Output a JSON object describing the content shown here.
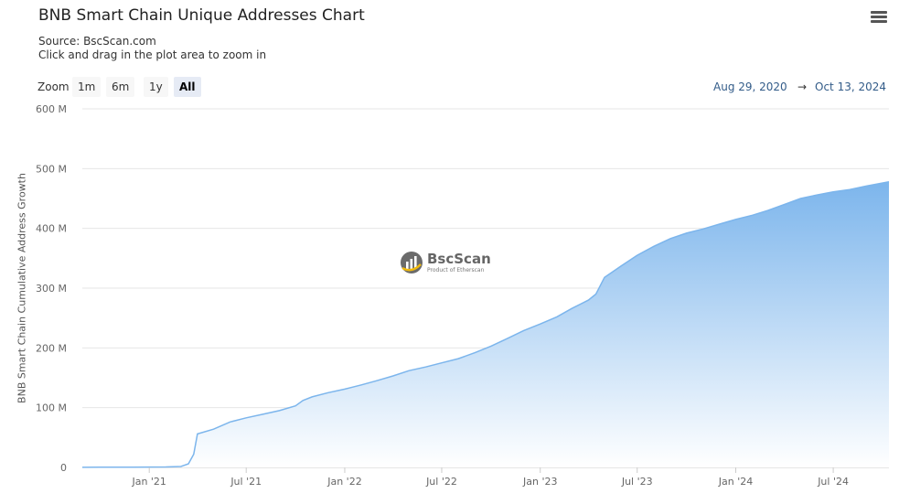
{
  "header": {
    "title": "BNB Smart Chain Unique Addresses Chart",
    "source": "Source: BscScan.com",
    "hint": "Click and drag in the plot area to zoom in"
  },
  "zoom": {
    "label": "Zoom",
    "options": [
      "1m",
      "6m",
      "1y",
      "All"
    ],
    "active": "All"
  },
  "range": {
    "from": "Aug 29, 2020",
    "arrow": "→",
    "to": "Oct 13, 2024"
  },
  "watermark": {
    "brand": "BscScan",
    "tagline": "Product of Etherscan"
  },
  "icons": {
    "menu": "hamburger-menu-icon",
    "logo": "bscscan-logo-icon"
  },
  "colors": {
    "series_line": "#7cb5ec",
    "area_top": "#7cb5ec",
    "area_bottom": "#ffffff",
    "grid": "#e6e6e6",
    "range_text": "#335c89"
  },
  "chart_data": {
    "type": "area",
    "ylabel": "BNB Smart Chain Cumulative Address Growth",
    "ylim": [
      0,
      600
    ],
    "yticks": [
      {
        "value": 0,
        "label": "0"
      },
      {
        "value": 100,
        "label": "100 M"
      },
      {
        "value": 200,
        "label": "200 M"
      },
      {
        "value": 300,
        "label": "300 M"
      },
      {
        "value": 400,
        "label": "400 M"
      },
      {
        "value": 500,
        "label": "500 M"
      },
      {
        "value": 600,
        "label": "600 M"
      }
    ],
    "xlim": [
      "2020-08-29",
      "2024-10-13"
    ],
    "xticks": [
      {
        "date": "2021-01-01",
        "label": "Jan '21"
      },
      {
        "date": "2021-07-01",
        "label": "Jul '21"
      },
      {
        "date": "2022-01-01",
        "label": "Jan '22"
      },
      {
        "date": "2022-07-01",
        "label": "Jul '22"
      },
      {
        "date": "2023-01-01",
        "label": "Jan '23"
      },
      {
        "date": "2023-07-01",
        "label": "Jul '23"
      },
      {
        "date": "2024-01-01",
        "label": "Jan '24"
      },
      {
        "date": "2024-07-01",
        "label": "Jul '24"
      }
    ],
    "grid": true,
    "legend": "none",
    "series": [
      {
        "points": [
          [
            "2020-08-29",
            0.2
          ],
          [
            "2020-10-01",
            0.3
          ],
          [
            "2020-12-01",
            0.5
          ],
          [
            "2021-02-01",
            0.8
          ],
          [
            "2021-03-01",
            1.5
          ],
          [
            "2021-03-15",
            6
          ],
          [
            "2021-03-25",
            22
          ],
          [
            "2021-04-01",
            56
          ],
          [
            "2021-05-01",
            64
          ],
          [
            "2021-06-01",
            76
          ],
          [
            "2021-07-01",
            83
          ],
          [
            "2021-08-01",
            89
          ],
          [
            "2021-09-01",
            95
          ],
          [
            "2021-10-01",
            103
          ],
          [
            "2021-10-15",
            112
          ],
          [
            "2021-11-01",
            118
          ],
          [
            "2021-12-01",
            125
          ],
          [
            "2022-01-01",
            131
          ],
          [
            "2022-02-01",
            138
          ],
          [
            "2022-03-01",
            145
          ],
          [
            "2022-04-01",
            153
          ],
          [
            "2022-05-01",
            162
          ],
          [
            "2022-06-01",
            168
          ],
          [
            "2022-07-01",
            175
          ],
          [
            "2022-08-01",
            182
          ],
          [
            "2022-09-01",
            192
          ],
          [
            "2022-10-01",
            203
          ],
          [
            "2022-11-01",
            216
          ],
          [
            "2022-12-01",
            229
          ],
          [
            "2023-01-01",
            240
          ],
          [
            "2023-02-01",
            252
          ],
          [
            "2023-03-01",
            266
          ],
          [
            "2023-04-01",
            280
          ],
          [
            "2023-04-15",
            290
          ],
          [
            "2023-05-01",
            318
          ],
          [
            "2023-06-01",
            337
          ],
          [
            "2023-07-01",
            355
          ],
          [
            "2023-08-01",
            370
          ],
          [
            "2023-09-01",
            383
          ],
          [
            "2023-10-01",
            392
          ],
          [
            "2023-11-01",
            399
          ],
          [
            "2023-12-01",
            407
          ],
          [
            "2024-01-01",
            415
          ],
          [
            "2024-02-01",
            422
          ],
          [
            "2024-03-01",
            430
          ],
          [
            "2024-04-01",
            440
          ],
          [
            "2024-05-01",
            450
          ],
          [
            "2024-06-01",
            456
          ],
          [
            "2024-07-01",
            461
          ],
          [
            "2024-08-01",
            465
          ],
          [
            "2024-09-01",
            471
          ],
          [
            "2024-10-13",
            478
          ]
        ]
      }
    ]
  }
}
